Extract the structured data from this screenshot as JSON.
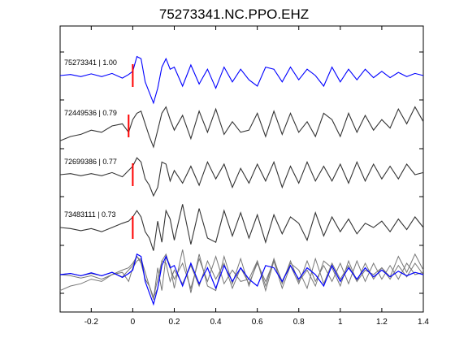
{
  "chart_data": {
    "type": "line",
    "title": "75273341.NC.PPO.EHZ",
    "xlabel": "",
    "ylabel": "",
    "xlim": [
      -0.35,
      1.4
    ],
    "xticks": [
      -0.2,
      0,
      0.2,
      0.4,
      0.6,
      0.8,
      1,
      1.2,
      1.4
    ],
    "xtick_labels": [
      "-0.2",
      "0",
      "0.2",
      "0.4",
      "0.6",
      "0.8",
      "1",
      "1.2",
      "1.4"
    ],
    "grid": false,
    "colors": {
      "primary": "#0000ff",
      "secondary": "#333333",
      "overlay_gray": "#777777",
      "pick": "#ff0000"
    },
    "traces": [
      {
        "label": "75273341 | 1.00",
        "color": "#0000ff",
        "pick_time": 0.0,
        "t": [
          -0.35,
          -0.3,
          -0.25,
          -0.2,
          -0.15,
          -0.1,
          -0.05,
          -0.02,
          0.0,
          0.02,
          0.04,
          0.06,
          0.08,
          0.1,
          0.12,
          0.14,
          0.16,
          0.18,
          0.2,
          0.24,
          0.28,
          0.32,
          0.36,
          0.4,
          0.44,
          0.48,
          0.52,
          0.56,
          0.6,
          0.64,
          0.68,
          0.72,
          0.76,
          0.8,
          0.84,
          0.88,
          0.92,
          0.96,
          1.0,
          1.04,
          1.08,
          1.12,
          1.16,
          1.2,
          1.24,
          1.28,
          1.32,
          1.36,
          1.4
        ],
        "v": [
          0.0,
          0.05,
          -0.05,
          0.08,
          -0.05,
          0.1,
          -0.12,
          0.05,
          0.2,
          0.9,
          0.8,
          -0.3,
          -0.8,
          -1.3,
          -0.6,
          0.4,
          0.8,
          0.3,
          0.4,
          -0.5,
          0.5,
          -0.4,
          0.3,
          -0.6,
          0.4,
          -0.3,
          0.3,
          -0.2,
          -0.5,
          0.4,
          0.3,
          -0.3,
          0.4,
          -0.2,
          0.3,
          0.0,
          -0.5,
          0.4,
          -0.3,
          0.3,
          -0.2,
          0.3,
          -0.1,
          0.2,
          -0.1,
          0.15,
          -0.05,
          0.1,
          0.0
        ]
      },
      {
        "label": "72449536 | 0.79",
        "color": "#333333",
        "pick_time": -0.02,
        "t": [
          -0.35,
          -0.3,
          -0.25,
          -0.2,
          -0.15,
          -0.1,
          -0.05,
          -0.02,
          0.0,
          0.02,
          0.04,
          0.06,
          0.08,
          0.1,
          0.12,
          0.14,
          0.16,
          0.18,
          0.2,
          0.24,
          0.28,
          0.32,
          0.36,
          0.4,
          0.44,
          0.48,
          0.52,
          0.56,
          0.6,
          0.64,
          0.68,
          0.72,
          0.76,
          0.8,
          0.84,
          0.88,
          0.92,
          0.96,
          1.0,
          1.04,
          1.08,
          1.12,
          1.16,
          1.2,
          1.24,
          1.28,
          1.32,
          1.36,
          1.4
        ],
        "v": [
          -0.7,
          -0.5,
          -0.4,
          -0.2,
          -0.3,
          0.0,
          0.1,
          -0.3,
          0.3,
          0.6,
          0.7,
          0.1,
          -0.5,
          -1.0,
          -0.2,
          0.6,
          0.9,
          0.3,
          -0.2,
          0.5,
          -0.6,
          0.7,
          -0.3,
          0.8,
          -0.4,
          0.2,
          -0.3,
          -0.2,
          0.6,
          -0.5,
          0.7,
          -0.4,
          0.6,
          -0.3,
          0.2,
          -0.5,
          0.6,
          0.3,
          -0.5,
          0.6,
          -0.3,
          0.5,
          -0.2,
          0.3,
          -0.1,
          0.8,
          0.1,
          0.9,
          0.2
        ]
      },
      {
        "label": "72699386 | 0.77",
        "color": "#333333",
        "pick_time": 0.0,
        "t": [
          -0.35,
          -0.3,
          -0.25,
          -0.2,
          -0.15,
          -0.1,
          -0.05,
          -0.02,
          0.0,
          0.02,
          0.04,
          0.06,
          0.08,
          0.1,
          0.12,
          0.14,
          0.16,
          0.18,
          0.2,
          0.24,
          0.28,
          0.32,
          0.36,
          0.4,
          0.44,
          0.48,
          0.52,
          0.56,
          0.6,
          0.64,
          0.68,
          0.72,
          0.76,
          0.8,
          0.84,
          0.88,
          0.92,
          0.96,
          1.0,
          1.04,
          1.08,
          1.12,
          1.16,
          1.2,
          1.24,
          1.28,
          1.32,
          1.36,
          1.4
        ],
        "v": [
          0.0,
          0.05,
          -0.05,
          0.05,
          -0.05,
          0.1,
          -0.1,
          0.2,
          0.4,
          0.8,
          0.6,
          -0.2,
          -0.5,
          -1.0,
          -0.6,
          0.6,
          0.5,
          -0.3,
          0.2,
          -0.4,
          0.4,
          -0.5,
          0.6,
          -0.2,
          0.5,
          -0.6,
          0.3,
          -0.4,
          0.5,
          -0.3,
          0.6,
          -0.6,
          0.4,
          -0.4,
          0.6,
          -0.3,
          0.4,
          -0.3,
          0.5,
          -0.4,
          0.6,
          -0.3,
          0.5,
          -0.2,
          0.4,
          -0.2,
          0.5,
          0.0,
          0.1
        ]
      },
      {
        "label": "73483111 | 0.73",
        "color": "#333333",
        "pick_time": 0.0,
        "t": [
          -0.35,
          -0.3,
          -0.25,
          -0.2,
          -0.15,
          -0.1,
          -0.05,
          -0.02,
          0.0,
          0.02,
          0.04,
          0.06,
          0.08,
          0.1,
          0.12,
          0.14,
          0.16,
          0.18,
          0.2,
          0.24,
          0.28,
          0.32,
          0.36,
          0.4,
          0.44,
          0.48,
          0.52,
          0.56,
          0.6,
          0.64,
          0.68,
          0.72,
          0.76,
          0.8,
          0.84,
          0.88,
          0.92,
          0.96,
          1.0,
          1.04,
          1.08,
          1.12,
          1.16,
          1.2,
          1.24,
          1.28,
          1.32,
          1.36,
          1.4
        ],
        "v": [
          0.0,
          -0.05,
          -0.15,
          -0.05,
          -0.2,
          0.0,
          0.2,
          0.3,
          0.5,
          0.8,
          0.5,
          -0.2,
          -0.5,
          -1.1,
          0.3,
          -0.7,
          0.8,
          0.4,
          -0.6,
          1.1,
          -0.8,
          0.9,
          -0.5,
          -0.7,
          0.8,
          -0.4,
          0.7,
          -0.5,
          0.6,
          -0.7,
          0.6,
          -0.3,
          0.5,
          0.2,
          -0.6,
          0.7,
          -0.4,
          0.5,
          -0.2,
          0.4,
          -0.3,
          0.2,
          0.0,
          0.3,
          -0.2,
          0.4,
          -0.1,
          0.5,
          0.0
        ]
      }
    ],
    "overlay": "all traces superimposed (primary in blue)"
  }
}
